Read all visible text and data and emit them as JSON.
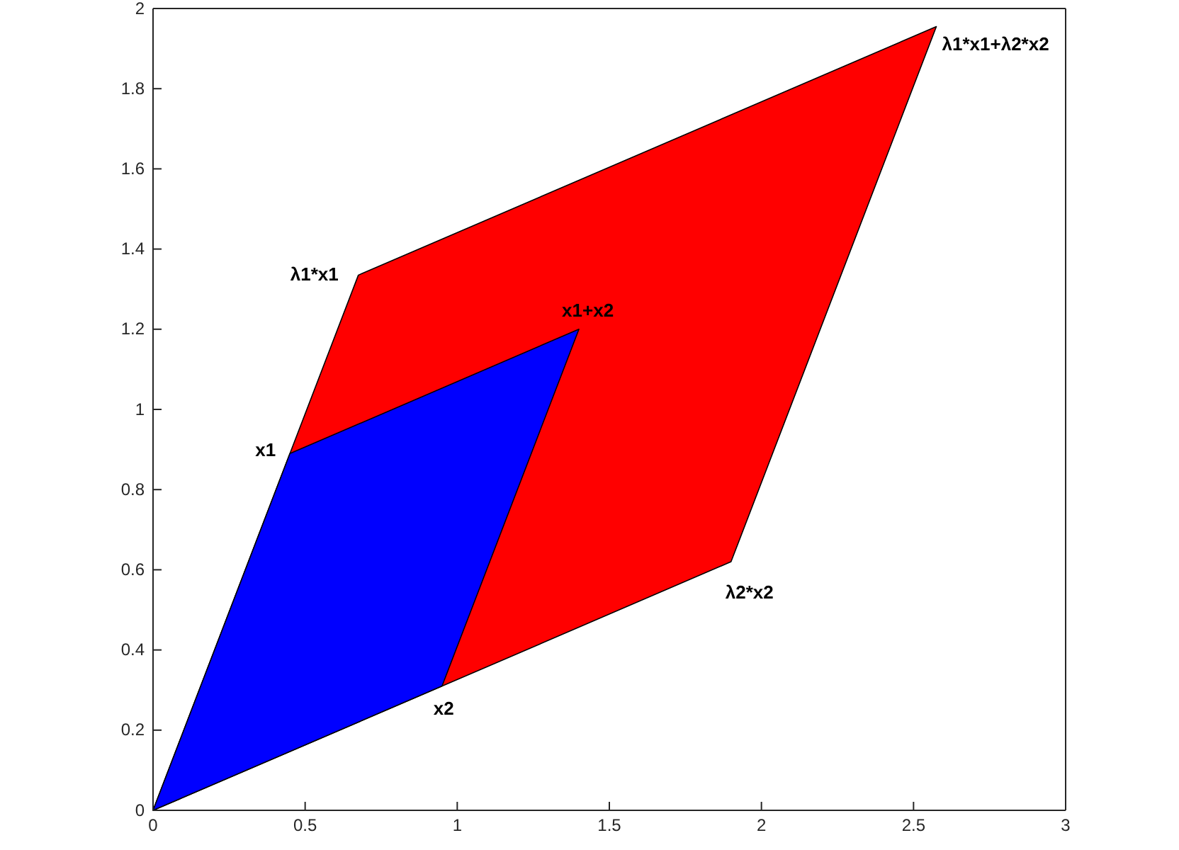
{
  "chart_data": {
    "type": "area",
    "xlim": [
      0,
      3
    ],
    "ylim": [
      0,
      2
    ],
    "xticks": [
      0,
      0.5,
      1,
      1.5,
      2,
      2.5,
      3
    ],
    "yticks": [
      0,
      0.2,
      0.4,
      0.6,
      0.8,
      1,
      1.2,
      1.4,
      1.6,
      1.8,
      2
    ],
    "grid": false,
    "series": [
      {
        "color": "#ff0000",
        "x": [
          0,
          0.675,
          2.575,
          1.9,
          0
        ],
        "values": [
          0,
          1.335,
          1.955,
          0.62,
          0
        ]
      },
      {
        "color": "#0000ff",
        "x": [
          0,
          0.45,
          1.4,
          0.95,
          0
        ],
        "values": [
          0,
          0.89,
          1.2,
          0.31,
          0
        ]
      }
    ],
    "annotations": [
      {
        "text": "λ1*x1",
        "x": 0.675,
        "y": 1.335
      },
      {
        "text": "x1",
        "x": 0.45,
        "y": 0.89
      },
      {
        "text": "x1+x2",
        "x": 1.4,
        "y": 1.2
      },
      {
        "text": "λ1*x1+λ2*x2",
        "x": 2.575,
        "y": 1.955
      },
      {
        "text": "λ2*x2",
        "x": 1.9,
        "y": 0.62
      },
      {
        "text": "x2",
        "x": 0.95,
        "y": 0.31
      }
    ]
  }
}
